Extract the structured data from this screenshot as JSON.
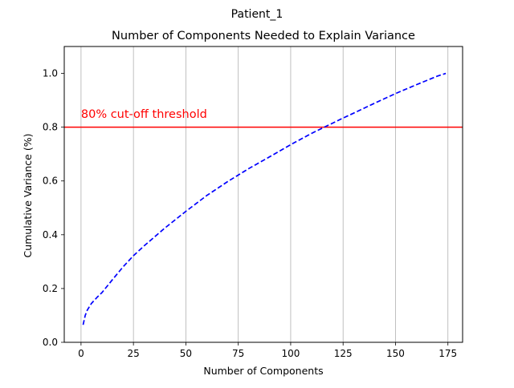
{
  "figure": {
    "suptitle": "Patient_1"
  },
  "chart_data": {
    "type": "line",
    "title": "Number of Components Needed to Explain Variance",
    "xlabel": "Number of Components",
    "ylabel": "Cumulative Variance (%)",
    "xlim": [
      -8,
      182
    ],
    "ylim": [
      0.0,
      1.1
    ],
    "xticks": [
      0,
      25,
      50,
      75,
      100,
      125,
      150,
      175
    ],
    "xtick_labels": [
      "0",
      "25",
      "50",
      "75",
      "100",
      "125",
      "150",
      "175"
    ],
    "yticks": [
      0.0,
      0.2,
      0.4,
      0.6,
      0.8,
      1.0
    ],
    "ytick_labels": [
      "0.0",
      "0.2",
      "0.4",
      "0.6",
      "0.8",
      "1.0"
    ],
    "grid": "x-only",
    "series": [
      {
        "color": "#0000ff",
        "linestyle": "dashed",
        "x": [
          1,
          2,
          3,
          5,
          8,
          10,
          15,
          20,
          25,
          30,
          40,
          50,
          60,
          70,
          75,
          80,
          90,
          100,
          110,
          116,
          120,
          125,
          130,
          140,
          150,
          160,
          170,
          174
        ],
        "y": [
          0.065,
          0.1,
          0.12,
          0.145,
          0.17,
          0.185,
          0.233,
          0.28,
          0.322,
          0.358,
          0.425,
          0.487,
          0.546,
          0.598,
          0.622,
          0.646,
          0.69,
          0.735,
          0.777,
          0.8,
          0.815,
          0.834,
          0.852,
          0.889,
          0.925,
          0.958,
          0.99,
          1.0
        ]
      }
    ],
    "threshold": {
      "y": 0.8,
      "color": "#ff0000",
      "label": "80% cut-off threshold",
      "label_x": 0,
      "label_y": 0.85
    }
  }
}
